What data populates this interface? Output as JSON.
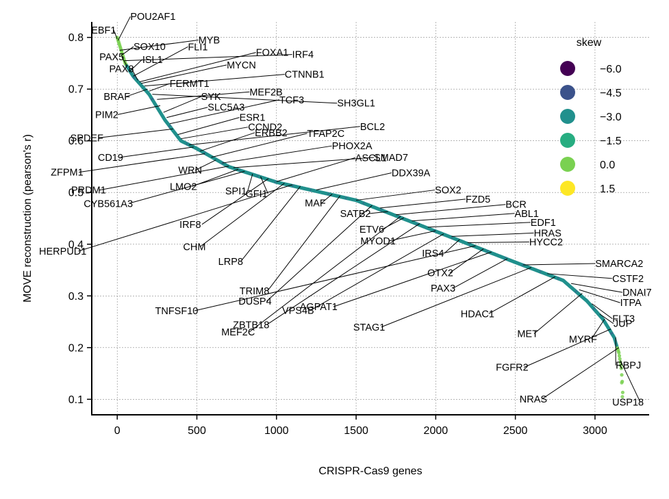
{
  "chart_data": {
    "type": "scatter",
    "xlabel": "CRISPR-Cas9 genes",
    "ylabel": "MOVE reconstruction (pearson's r)",
    "xlim": [
      -160,
      3340
    ],
    "ylim": [
      0.07,
      0.83
    ],
    "xticks": [
      0,
      500,
      1000,
      1500,
      2000,
      2500,
      3000
    ],
    "yticks": [
      0.1,
      0.2,
      0.3,
      0.4,
      0.5,
      0.6,
      0.7,
      0.8
    ],
    "grid": true,
    "legend": {
      "title": "skew",
      "placement": "top-right",
      "entries": [
        {
          "label": "−6.0",
          "color": "#440154"
        },
        {
          "label": "−4.5",
          "color": "#3b528b"
        },
        {
          "label": "−3.0",
          "color": "#21908d"
        },
        {
          "label": "−1.5",
          "color": "#27ad81"
        },
        {
          "label": "0.0",
          "color": "#7ad151"
        },
        {
          "label": "1.5",
          "color": "#fde725"
        }
      ]
    },
    "curve": {
      "n_points": 3175,
      "shape_points": [
        [
          0,
          0.8
        ],
        [
          20,
          0.78
        ],
        [
          50,
          0.75
        ],
        [
          100,
          0.725
        ],
        [
          200,
          0.69
        ],
        [
          300,
          0.64
        ],
        [
          400,
          0.6
        ],
        [
          500,
          0.585
        ],
        [
          700,
          0.55
        ],
        [
          1000,
          0.52
        ],
        [
          1500,
          0.485
        ],
        [
          2000,
          0.425
        ],
        [
          2500,
          0.365
        ],
        [
          2800,
          0.33
        ],
        [
          2950,
          0.29
        ],
        [
          3050,
          0.255
        ],
        [
          3120,
          0.22
        ],
        [
          3150,
          0.19
        ],
        [
          3165,
          0.16
        ],
        [
          3172,
          0.13
        ],
        [
          3175,
          0.105
        ]
      ],
      "color_main": "#21908d",
      "color_accent": "#3b528b",
      "color_tail": "#7ad151"
    },
    "genes": [
      {
        "name": "EBF1",
        "x": 0,
        "y": 0.797
      },
      {
        "name": "POU2AF1",
        "x": 5,
        "y": 0.794
      },
      {
        "name": "MYB",
        "x": 15,
        "y": 0.775
      },
      {
        "name": "SOX10",
        "x": 25,
        "y": 0.765
      },
      {
        "name": "IRF4",
        "x": 45,
        "y": 0.755
      },
      {
        "name": "PAX5",
        "x": 60,
        "y": 0.745
      },
      {
        "name": "ISL1",
        "x": 80,
        "y": 0.735
      },
      {
        "name": "FLI1",
        "x": 100,
        "y": 0.725
      },
      {
        "name": "PAX8",
        "x": 130,
        "y": 0.717
      },
      {
        "name": "FOXA1",
        "x": 140,
        "y": 0.714
      },
      {
        "name": "MYCN",
        "x": 150,
        "y": 0.711
      },
      {
        "name": "CTNNB1",
        "x": 170,
        "y": 0.706
      },
      {
        "name": "BRAF",
        "x": 190,
        "y": 0.7
      },
      {
        "name": "FERMT1",
        "x": 200,
        "y": 0.696
      },
      {
        "name": "SH3GL1",
        "x": 220,
        "y": 0.69
      },
      {
        "name": "MEF2B",
        "x": 250,
        "y": 0.68
      },
      {
        "name": "PIM2",
        "x": 270,
        "y": 0.668
      },
      {
        "name": "SYK",
        "x": 290,
        "y": 0.655
      },
      {
        "name": "SLC5A3",
        "x": 310,
        "y": 0.645
      },
      {
        "name": "TCF3",
        "x": 330,
        "y": 0.633
      },
      {
        "name": "SPDEF",
        "x": 350,
        "y": 0.623
      },
      {
        "name": "ESR1",
        "x": 380,
        "y": 0.612
      },
      {
        "name": "CCND2",
        "x": 400,
        "y": 0.604
      },
      {
        "name": "BCL2",
        "x": 450,
        "y": 0.592
      },
      {
        "name": "CD19",
        "x": 480,
        "y": 0.588
      },
      {
        "name": "ERBB2",
        "x": 520,
        "y": 0.58
      },
      {
        "name": "ZFPM1",
        "x": 550,
        "y": 0.575
      },
      {
        "name": "TFAP2C",
        "x": 590,
        "y": 0.568
      },
      {
        "name": "WRN",
        "x": 620,
        "y": 0.563
      },
      {
        "name": "PHOX2A",
        "x": 660,
        "y": 0.557
      },
      {
        "name": "PRDM1",
        "x": 700,
        "y": 0.551
      },
      {
        "name": "SMAD7",
        "x": 730,
        "y": 0.548
      },
      {
        "name": "LMO2",
        "x": 760,
        "y": 0.545
      },
      {
        "name": "CYB561A3",
        "x": 800,
        "y": 0.541
      },
      {
        "name": "SPI1",
        "x": 850,
        "y": 0.536
      },
      {
        "name": "GFI1",
        "x": 900,
        "y": 0.531
      },
      {
        "name": "IRF8",
        "x": 950,
        "y": 0.527
      },
      {
        "name": "ASCL1",
        "x": 1000,
        "y": 0.521
      },
      {
        "name": "CHM",
        "x": 1050,
        "y": 0.518
      },
      {
        "name": "HERPUD1",
        "x": 1100,
        "y": 0.515
      },
      {
        "name": "LRP8",
        "x": 1150,
        "y": 0.512
      },
      {
        "name": "DDX39A",
        "x": 1250,
        "y": 0.505
      },
      {
        "name": "MAF",
        "x": 1350,
        "y": 0.497
      },
      {
        "name": "TRIM8",
        "x": 1400,
        "y": 0.494
      },
      {
        "name": "SOX2",
        "x": 1500,
        "y": 0.485
      },
      {
        "name": "DUSP4",
        "x": 1600,
        "y": 0.475
      },
      {
        "name": "FZD5",
        "x": 1650,
        "y": 0.47
      },
      {
        "name": "SATB2",
        "x": 1700,
        "y": 0.463
      },
      {
        "name": "BCR",
        "x": 1750,
        "y": 0.457
      },
      {
        "name": "MEF2C",
        "x": 1780,
        "y": 0.454
      },
      {
        "name": "ETV6",
        "x": 1800,
        "y": 0.451
      },
      {
        "name": "ABL1",
        "x": 1850,
        "y": 0.445
      },
      {
        "name": "ZBTB18",
        "x": 1900,
        "y": 0.44
      },
      {
        "name": "EDF1",
        "x": 1950,
        "y": 0.433
      },
      {
        "name": "MYOD1",
        "x": 2000,
        "y": 0.426
      },
      {
        "name": "VPS4B",
        "x": 2050,
        "y": 0.42
      },
      {
        "name": "HRAS",
        "x": 2100,
        "y": 0.415
      },
      {
        "name": "IRS4",
        "x": 2150,
        "y": 0.409
      },
      {
        "name": "HYCC2",
        "x": 2200,
        "y": 0.403
      },
      {
        "name": "TNFSF10",
        "x": 2250,
        "y": 0.397
      },
      {
        "name": "OTX2",
        "x": 2300,
        "y": 0.391
      },
      {
        "name": "AGPAT1",
        "x": 2350,
        "y": 0.385
      },
      {
        "name": "PAX3",
        "x": 2450,
        "y": 0.372
      },
      {
        "name": "SMARCA2",
        "x": 2550,
        "y": 0.36
      },
      {
        "name": "STAG1",
        "x": 2600,
        "y": 0.355
      },
      {
        "name": "CSTF2",
        "x": 2700,
        "y": 0.343
      },
      {
        "name": "HDAC1",
        "x": 2750,
        "y": 0.337
      },
      {
        "name": "DNAI7",
        "x": 2850,
        "y": 0.324
      },
      {
        "name": "ITPA",
        "x": 2900,
        "y": 0.312
      },
      {
        "name": "MET",
        "x": 2920,
        "y": 0.305
      },
      {
        "name": "FLT3",
        "x": 2980,
        "y": 0.285
      },
      {
        "name": "JUP",
        "x": 3030,
        "y": 0.265
      },
      {
        "name": "MYRF",
        "x": 3060,
        "y": 0.255
      },
      {
        "name": "FGFR2",
        "x": 3100,
        "y": 0.236
      },
      {
        "name": "RBPJ",
        "x": 3130,
        "y": 0.22
      },
      {
        "name": "NRAS",
        "x": 3150,
        "y": 0.2
      },
      {
        "name": "USP18",
        "x": 3160,
        "y": 0.175
      }
    ]
  }
}
